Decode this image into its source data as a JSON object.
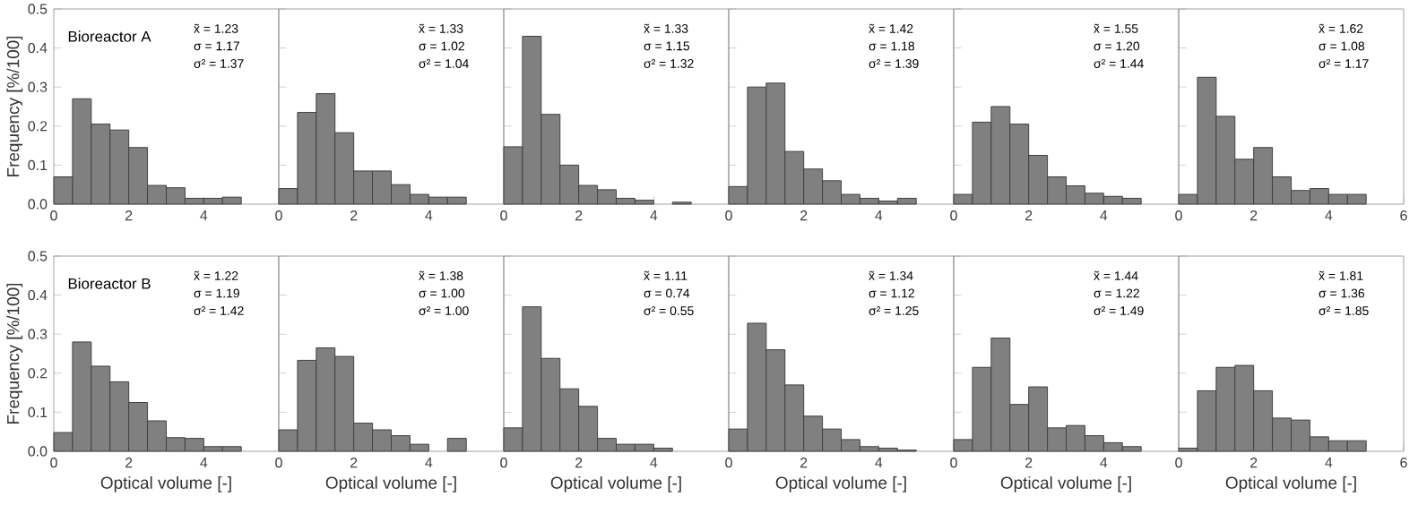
{
  "chart_data": [
    {
      "type": "histogram",
      "title": "Bioreactor A",
      "ylabel": "Frequency [%/100]",
      "annotations": [
        "x̃ = 1.23",
        "σ = 1.17",
        "σ² = 1.37"
      ],
      "bins": [
        0,
        0.5,
        1,
        1.5,
        2,
        2.5,
        3,
        3.5,
        4,
        4.5,
        5
      ],
      "values": [
        0.07,
        0.27,
        0.205,
        0.19,
        0.145,
        0.048,
        0.042,
        0.015,
        0.015,
        0.018
      ],
      "color": "#808080",
      "xlim": [
        0,
        6
      ],
      "xticks": [
        0,
        2,
        4
      ],
      "ylim": [
        0,
        0.5
      ],
      "yticks": [
        {
          "value": 0,
          "label": "0.0"
        },
        0.1,
        0.2,
        0.3,
        0.4,
        0.5
      ]
    },
    {
      "type": "histogram",
      "annotations": [
        "x̃ = 1.33",
        "σ = 1.02",
        "σ² = 1.04"
      ],
      "bins": [
        0,
        0.5,
        1,
        1.5,
        2,
        2.5,
        3,
        3.5,
        4,
        4.5,
        5
      ],
      "values": [
        0.04,
        0.235,
        0.283,
        0.183,
        0.085,
        0.085,
        0.05,
        0.025,
        0.018,
        0.018
      ],
      "color": "#808080",
      "xlim": [
        0,
        6
      ],
      "xticks": [
        0,
        2,
        4
      ],
      "ylim": [
        0,
        0.5
      ],
      "yticks": [
        0,
        0.1,
        0.2,
        0.3,
        0.4,
        0.5
      ],
      "tick_labels": "x"
    },
    {
      "type": "histogram",
      "annotations": [
        "x̃ = 1.33",
        "σ = 1.15",
        "σ² = 1.32"
      ],
      "bins": [
        0,
        0.5,
        1,
        1.5,
        2,
        2.5,
        3,
        3.5,
        4,
        4.5,
        5
      ],
      "values": [
        0.147,
        0.43,
        0.23,
        0.1,
        0.048,
        0.037,
        0.015,
        0.01,
        null,
        0.005
      ],
      "color": "#808080",
      "xlim": [
        0,
        6
      ],
      "xticks": [
        0,
        2,
        4
      ],
      "ylim": [
        0,
        0.5
      ],
      "yticks": [
        0,
        0.1,
        0.2,
        0.3,
        0.4,
        0.5
      ],
      "tick_labels": "x"
    },
    {
      "type": "histogram",
      "annotations": [
        "x̃ = 1.42",
        "σ = 1.18",
        "σ² = 1.39"
      ],
      "bins": [
        0,
        0.5,
        1,
        1.5,
        2,
        2.5,
        3,
        3.5,
        4,
        4.5,
        5
      ],
      "values": [
        0.045,
        0.3,
        0.31,
        0.135,
        0.09,
        0.06,
        0.025,
        0.015,
        0.008,
        0.015
      ],
      "color": "#808080",
      "xlim": [
        0,
        6
      ],
      "xticks": [
        0,
        2,
        4
      ],
      "ylim": [
        0,
        0.5
      ],
      "yticks": [
        0,
        0.1,
        0.2,
        0.3,
        0.4,
        0.5
      ],
      "tick_labels": "x"
    },
    {
      "type": "histogram",
      "annotations": [
        "x̃ = 1.55",
        "σ = 1.20",
        "σ² = 1.44"
      ],
      "bins": [
        0,
        0.5,
        1,
        1.5,
        2,
        2.5,
        3,
        3.5,
        4,
        4.5,
        5
      ],
      "values": [
        0.025,
        0.21,
        0.25,
        0.205,
        0.125,
        0.07,
        0.047,
        0.028,
        0.02,
        0.015
      ],
      "color": "#808080",
      "xlim": [
        0,
        6
      ],
      "xticks": [
        0,
        2,
        4
      ],
      "ylim": [
        0,
        0.5
      ],
      "yticks": [
        0,
        0.1,
        0.2,
        0.3,
        0.4,
        0.5
      ],
      "tick_labels": "x"
    },
    {
      "type": "histogram",
      "annotations": [
        "x̃ = 1.62",
        "σ = 1.08",
        "σ² = 1.17"
      ],
      "bins": [
        0,
        0.5,
        1,
        1.5,
        2,
        2.5,
        3,
        3.5,
        4,
        4.5,
        5
      ],
      "values": [
        0.025,
        0.325,
        0.225,
        0.115,
        0.145,
        0.07,
        0.035,
        0.04,
        0.025,
        0.025
      ],
      "color": "#808080",
      "xlim": [
        0,
        6
      ],
      "xticks": [
        0,
        2,
        4,
        6
      ],
      "ylim": [
        0,
        0.5
      ],
      "yticks": [
        0,
        0.1,
        0.2,
        0.3,
        0.4,
        0.5
      ],
      "tick_labels": "x"
    },
    {
      "type": "histogram",
      "title": "Bioreactor B",
      "ylabel": "Frequency [%/100]",
      "xlabel": "Optical volume [-]",
      "annotations": [
        "x̃ = 1.22",
        "σ = 1.19",
        "σ² = 1.42"
      ],
      "bins": [
        0,
        0.5,
        1,
        1.5,
        2,
        2.5,
        3,
        3.5,
        4,
        4.5,
        5
      ],
      "values": [
        0.048,
        0.28,
        0.218,
        0.178,
        0.125,
        0.078,
        0.035,
        0.033,
        0.012,
        0.012
      ],
      "color": "#808080",
      "xlim": [
        0,
        6
      ],
      "xticks": [
        0,
        2,
        4
      ],
      "ylim": [
        0,
        0.5
      ],
      "yticks": [
        {
          "value": 0,
          "label": "0.0"
        },
        0.1,
        0.2,
        0.3,
        0.4,
        0.5
      ]
    },
    {
      "type": "histogram",
      "xlabel": "Optical volume [-]",
      "annotations": [
        "x̃ = 1.38",
        "σ = 1.00",
        "σ² = 1.00"
      ],
      "bins": [
        0,
        0.5,
        1,
        1.5,
        2,
        2.5,
        3,
        3.5,
        4,
        4.5,
        5
      ],
      "values": [
        0.055,
        0.233,
        0.265,
        0.243,
        0.072,
        0.055,
        0.04,
        0.018,
        null,
        0.033
      ],
      "color": "#808080",
      "xlim": [
        0,
        6
      ],
      "xticks": [
        0,
        2,
        4
      ],
      "ylim": [
        0,
        0.5
      ],
      "yticks": [
        0,
        0.1,
        0.2,
        0.3,
        0.4,
        0.5
      ],
      "tick_labels": "x"
    },
    {
      "type": "histogram",
      "xlabel": "Optical volume [-]",
      "annotations": [
        "x̃ = 1.11",
        "σ = 0.74",
        "σ² = 0.55"
      ],
      "bins": [
        0,
        0.5,
        1,
        1.5,
        2,
        2.5,
        3,
        3.5,
        4,
        4.5,
        5
      ],
      "values": [
        0.06,
        0.37,
        0.238,
        0.16,
        0.115,
        0.033,
        0.018,
        0.018,
        0.008,
        null
      ],
      "color": "#808080",
      "xlim": [
        0,
        6
      ],
      "xticks": [
        0,
        2,
        4
      ],
      "ylim": [
        0,
        0.5
      ],
      "yticks": [
        0,
        0.1,
        0.2,
        0.3,
        0.4,
        0.5
      ],
      "tick_labels": "x"
    },
    {
      "type": "histogram",
      "xlabel": "Optical volume [-]",
      "annotations": [
        "x̃ = 1.34",
        "σ = 1.12",
        "σ² = 1.25"
      ],
      "bins": [
        0,
        0.5,
        1,
        1.5,
        2,
        2.5,
        3,
        3.5,
        4,
        4.5,
        5
      ],
      "values": [
        0.057,
        0.328,
        0.26,
        0.17,
        0.09,
        0.057,
        0.03,
        0.012,
        0.008,
        0.003
      ],
      "color": "#808080",
      "xlim": [
        0,
        6
      ],
      "xticks": [
        0,
        2,
        4
      ],
      "ylim": [
        0,
        0.5
      ],
      "yticks": [
        0,
        0.1,
        0.2,
        0.3,
        0.4,
        0.5
      ],
      "tick_labels": "x"
    },
    {
      "type": "histogram",
      "xlabel": "Optical volume [-]",
      "annotations": [
        "x̃ = 1.44",
        "σ = 1.22",
        "σ² = 1.49"
      ],
      "bins": [
        0,
        0.5,
        1,
        1.5,
        2,
        2.5,
        3,
        3.5,
        4,
        4.5,
        5
      ],
      "values": [
        0.03,
        0.215,
        0.29,
        0.12,
        0.165,
        0.06,
        0.066,
        0.04,
        0.022,
        0.012
      ],
      "color": "#808080",
      "xlim": [
        0,
        6
      ],
      "xticks": [
        0,
        2,
        4
      ],
      "ylim": [
        0,
        0.5
      ],
      "yticks": [
        0,
        0.1,
        0.2,
        0.3,
        0.4,
        0.5
      ],
      "tick_labels": "x"
    },
    {
      "type": "histogram",
      "xlabel": "Optical volume [-]",
      "annotations": [
        "x̃ = 1.81",
        "σ = 1.36",
        "σ² = 1.85"
      ],
      "bins": [
        0,
        0.5,
        1,
        1.5,
        2,
        2.5,
        3,
        3.5,
        4,
        4.5,
        5
      ],
      "values": [
        0.008,
        0.155,
        0.215,
        0.22,
        0.155,
        0.085,
        0.08,
        0.037,
        0.027,
        0.027
      ],
      "color": "#808080",
      "xlim": [
        0,
        6
      ],
      "xticks": [
        0,
        2,
        4,
        6
      ],
      "ylim": [
        0,
        0.5
      ],
      "yticks": [
        0,
        0.1,
        0.2,
        0.3,
        0.4,
        0.5
      ],
      "tick_labels": "x"
    }
  ]
}
